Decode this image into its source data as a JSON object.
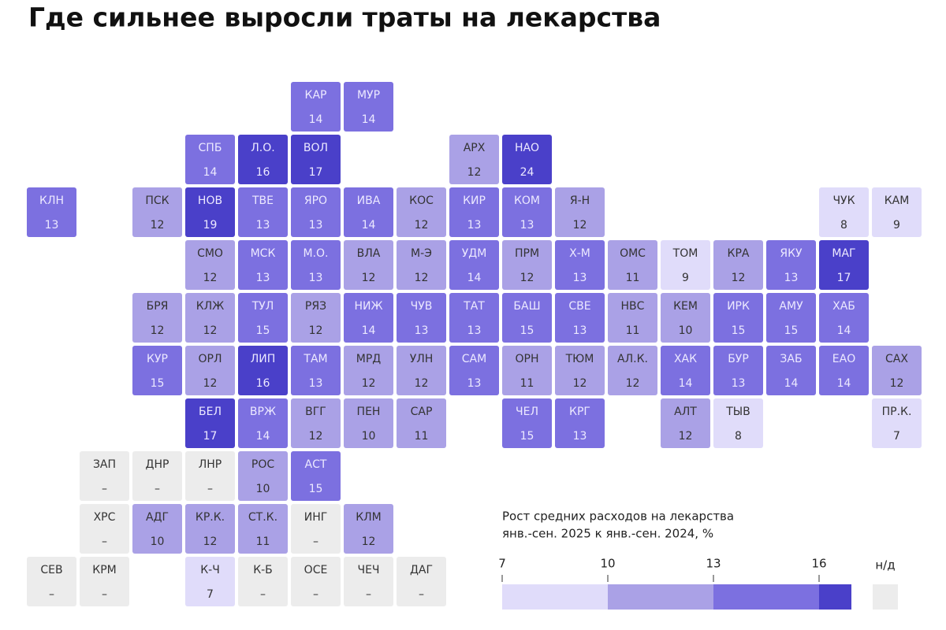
{
  "title": "Где сильнее выросли траты на лекарства",
  "tiles": [
    {
      "label": "КАР",
      "value": 14
    },
    {
      "label": "МУР",
      "value": 14
    },
    {
      "label": "СПБ",
      "value": 14
    },
    {
      "label": "Л.О.",
      "value": 16
    },
    {
      "label": "ВОЛ",
      "value": 17
    },
    {
      "label": "АРХ",
      "value": 12
    },
    {
      "label": "НАО",
      "value": 24
    },
    {
      "label": "КЛН",
      "value": 13
    },
    {
      "label": "ПСК",
      "value": 12
    },
    {
      "label": "НОВ",
      "value": 19
    },
    {
      "label": "ТВЕ",
      "value": 13
    },
    {
      "label": "ЯРО",
      "value": 13
    },
    {
      "label": "ИВА",
      "value": 14
    },
    {
      "label": "КОС",
      "value": 12
    },
    {
      "label": "КИР",
      "value": 13
    },
    {
      "label": "КОМ",
      "value": 13
    },
    {
      "label": "Я-Н",
      "value": 12
    },
    {
      "label": "ЧУК",
      "value": 8
    },
    {
      "label": "КАМ",
      "value": 9
    },
    {
      "label": "СМО",
      "value": 12
    },
    {
      "label": "МСК",
      "value": 13
    },
    {
      "label": "М.О.",
      "value": 13
    },
    {
      "label": "ВЛА",
      "value": 12
    },
    {
      "label": "М-Э",
      "value": 12
    },
    {
      "label": "УДМ",
      "value": 14
    },
    {
      "label": "ПРМ",
      "value": 12
    },
    {
      "label": "Х-М",
      "value": 13
    },
    {
      "label": "ОМС",
      "value": 11
    },
    {
      "label": "ТОМ",
      "value": 9
    },
    {
      "label": "КРА",
      "value": 12
    },
    {
      "label": "ЯКУ",
      "value": 13
    },
    {
      "label": "МАГ",
      "value": 17
    },
    {
      "label": "БРЯ",
      "value": 12
    },
    {
      "label": "КЛЖ",
      "value": 12
    },
    {
      "label": "ТУЛ",
      "value": 15
    },
    {
      "label": "РЯЗ",
      "value": 12
    },
    {
      "label": "НИЖ",
      "value": 14
    },
    {
      "label": "ЧУВ",
      "value": 13
    },
    {
      "label": "ТАТ",
      "value": 13
    },
    {
      "label": "БАШ",
      "value": 15
    },
    {
      "label": "СВЕ",
      "value": 13
    },
    {
      "label": "НВС",
      "value": 11
    },
    {
      "label": "КЕМ",
      "value": 10
    },
    {
      "label": "ИРК",
      "value": 15
    },
    {
      "label": "АМУ",
      "value": 15
    },
    {
      "label": "ХАБ",
      "value": 14
    },
    {
      "label": "КУР",
      "value": 15
    },
    {
      "label": "ОРЛ",
      "value": 12
    },
    {
      "label": "ЛИП",
      "value": 16
    },
    {
      "label": "ТАМ",
      "value": 13
    },
    {
      "label": "МРД",
      "value": 12
    },
    {
      "label": "УЛН",
      "value": 12
    },
    {
      "label": "САМ",
      "value": 13
    },
    {
      "label": "ОРН",
      "value": 11
    },
    {
      "label": "ТЮМ",
      "value": 12
    },
    {
      "label": "АЛ.К.",
      "value": 12
    },
    {
      "label": "ХАК",
      "value": 14
    },
    {
      "label": "БУР",
      "value": 13
    },
    {
      "label": "ЗАБ",
      "value": 14
    },
    {
      "label": "ЕАО",
      "value": 14
    },
    {
      "label": "САХ",
      "value": 12
    },
    {
      "label": "БЕЛ",
      "value": 17
    },
    {
      "label": "ВРЖ",
      "value": 14
    },
    {
      "label": "ВГГ",
      "value": 12
    },
    {
      "label": "ПЕН",
      "value": 10
    },
    {
      "label": "САР",
      "value": 11
    },
    {
      "label": "ЧЕЛ",
      "value": 15
    },
    {
      "label": "КРГ",
      "value": 13
    },
    {
      "label": "АЛТ",
      "value": 12
    },
    {
      "label": "ТЫВ",
      "value": 8
    },
    {
      "label": "ПР.К.",
      "value": 7
    },
    {
      "label": "ЗАП",
      "value": "–"
    },
    {
      "label": "ДНР",
      "value": "–"
    },
    {
      "label": "ЛНР",
      "value": "–"
    },
    {
      "label": "РОС",
      "value": 10
    },
    {
      "label": "АСТ",
      "value": 15
    },
    {
      "label": "ХРС",
      "value": "–"
    },
    {
      "label": "АДГ",
      "value": 10
    },
    {
      "label": "КР.К.",
      "value": 12
    },
    {
      "label": "СТ.К.",
      "value": 11
    },
    {
      "label": "ИНГ",
      "value": "–"
    },
    {
      "label": "КЛМ",
      "value": 12
    },
    {
      "label": "СЕВ",
      "value": "–"
    },
    {
      "label": "КРМ",
      "value": "–"
    },
    {
      "label": "К-Ч",
      "value": 7
    },
    {
      "label": "К-Б",
      "value": "–"
    },
    {
      "label": "ОСЕ",
      "value": "–"
    },
    {
      "label": "ЧЕЧ",
      "value": "–"
    },
    {
      "label": "ДАГ",
      "value": "–"
    }
  ],
  "legend": {
    "title_lines": [
      "Рост средних расходов на лекарства",
      "янв.-сен. 2025 к янв.-сен. 2024, %"
    ],
    "ticks": [
      7,
      10,
      13,
      16
    ],
    "colors": [
      "#e0dcfa",
      "#aaa1e6",
      "#7c70e0",
      "#4a40c9"
    ],
    "na_label": "н/д",
    "na_color": "#ececec"
  }
}
